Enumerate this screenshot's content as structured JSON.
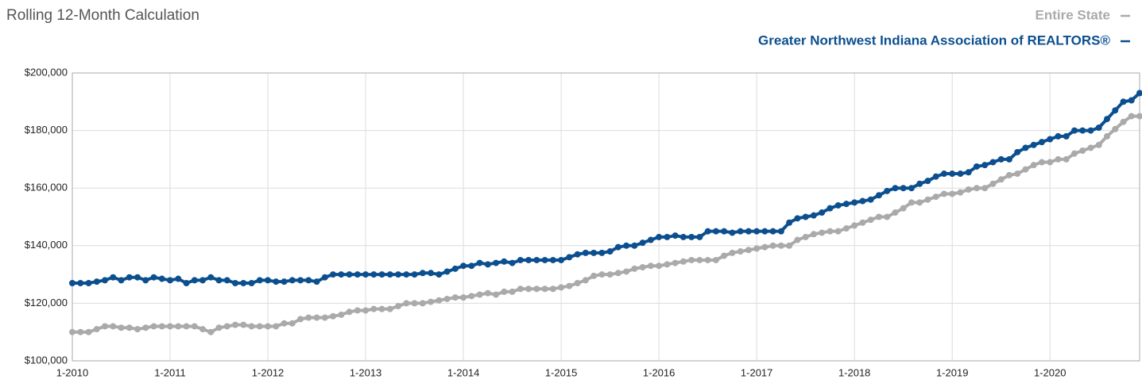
{
  "chart_data": {
    "type": "line",
    "title": "Rolling 12-Month Calculation",
    "categories": [
      "1-2010",
      null,
      null,
      null,
      null,
      null,
      null,
      null,
      null,
      null,
      null,
      null,
      "1-2011",
      null,
      null,
      null,
      null,
      null,
      null,
      null,
      null,
      null,
      null,
      null,
      "1-2012",
      null,
      null,
      null,
      null,
      null,
      null,
      null,
      null,
      null,
      null,
      null,
      "1-2013",
      null,
      null,
      null,
      null,
      null,
      null,
      null,
      null,
      null,
      null,
      null,
      "1-2014",
      null,
      null,
      null,
      null,
      null,
      null,
      null,
      null,
      null,
      null,
      null,
      "1-2015",
      null,
      null,
      null,
      null,
      null,
      null,
      null,
      null,
      null,
      null,
      null,
      "1-2016",
      null,
      null,
      null,
      null,
      null,
      null,
      null,
      null,
      null,
      null,
      null,
      "1-2017",
      null,
      null,
      null,
      null,
      null,
      null,
      null,
      null,
      null,
      null,
      null,
      "1-2018",
      null,
      null,
      null,
      null,
      null,
      null,
      null,
      null,
      null,
      null,
      null,
      "1-2019",
      null,
      null,
      null,
      null,
      null,
      null,
      null,
      null,
      null,
      null,
      null,
      "1-2020",
      null,
      null,
      null,
      null,
      null,
      null,
      null,
      null,
      null,
      null,
      null
    ],
    "series": [
      {
        "name": "Entire State",
        "color": "#aaaaaa",
        "values": [
          110000,
          110000,
          110000,
          111000,
          112000,
          112000,
          111500,
          111500,
          111000,
          111500,
          112000,
          112000,
          112000,
          112000,
          112000,
          112000,
          111000,
          110000,
          111500,
          112000,
          112500,
          112500,
          112000,
          112000,
          112000,
          112000,
          113000,
          113000,
          114500,
          115000,
          115000,
          115000,
          115500,
          116000,
          117000,
          117500,
          117500,
          118000,
          118000,
          118000,
          119000,
          120000,
          120000,
          120000,
          120500,
          121000,
          121500,
          122000,
          122000,
          122500,
          123000,
          123500,
          123000,
          124000,
          124000,
          125000,
          125000,
          125000,
          125000,
          125000,
          125500,
          126000,
          127000,
          128000,
          129500,
          130000,
          130000,
          130500,
          131000,
          132000,
          132500,
          133000,
          133000,
          133500,
          134000,
          134500,
          135000,
          135000,
          135000,
          135000,
          136500,
          137500,
          138000,
          138500,
          139000,
          139500,
          140000,
          140000,
          140000,
          142000,
          143000,
          144000,
          144500,
          145000,
          145000,
          146000,
          147000,
          148000,
          149000,
          150000,
          150000,
          151500,
          153000,
          155000,
          155000,
          156000,
          157000,
          158000,
          158000,
          158500,
          159500,
          160000,
          160000,
          161500,
          163000,
          164500,
          165000,
          166500,
          168000,
          169000,
          169000,
          170000,
          170000,
          172000,
          173000,
          174000,
          175000,
          178000,
          180500,
          183000,
          185000,
          185000
        ]
      },
      {
        "name": "Greater Northwest Indiana Association of REALTORS®",
        "color": "#0b4f8f",
        "values": [
          127000,
          127000,
          127000,
          127500,
          128000,
          129000,
          128000,
          129000,
          129000,
          128000,
          129000,
          128500,
          128000,
          128500,
          127000,
          128000,
          128000,
          129000,
          128000,
          128000,
          127000,
          127000,
          127000,
          128000,
          128000,
          127500,
          127500,
          128000,
          128000,
          128000,
          127500,
          129000,
          130000,
          130000,
          130000,
          130000,
          130000,
          130000,
          130000,
          130000,
          130000,
          130000,
          130000,
          130500,
          130500,
          130000,
          131000,
          132000,
          133000,
          133000,
          134000,
          133500,
          134000,
          134500,
          134000,
          135000,
          135000,
          135000,
          135000,
          135000,
          135000,
          136000,
          137000,
          137500,
          137500,
          137500,
          138000,
          139500,
          140000,
          140000,
          141000,
          142000,
          143000,
          143000,
          143500,
          143000,
          143000,
          143000,
          145000,
          145000,
          145000,
          144500,
          145000,
          145000,
          145000,
          145000,
          145000,
          145000,
          148000,
          149500,
          150000,
          150500,
          151500,
          153000,
          154000,
          154500,
          155000,
          155500,
          156000,
          157500,
          159000,
          160000,
          160000,
          160000,
          161500,
          162500,
          164000,
          165000,
          165000,
          165000,
          165500,
          167500,
          168000,
          169000,
          170000,
          170000,
          172500,
          174000,
          175000,
          176000,
          177000,
          178000,
          178000,
          180000,
          180000,
          180000,
          181000,
          184000,
          187000,
          190000,
          190500,
          193000
        ]
      }
    ],
    "ylim": [
      100000,
      200000
    ],
    "yticks": [
      {
        "value": 100000,
        "label": "$100,000"
      },
      {
        "value": 120000,
        "label": "$120,000"
      },
      {
        "value": 140000,
        "label": "$140,000"
      },
      {
        "value": 160000,
        "label": "$160,000"
      },
      {
        "value": 180000,
        "label": "$180,000"
      },
      {
        "value": 200000,
        "label": "$200,000"
      }
    ],
    "grid": true
  }
}
